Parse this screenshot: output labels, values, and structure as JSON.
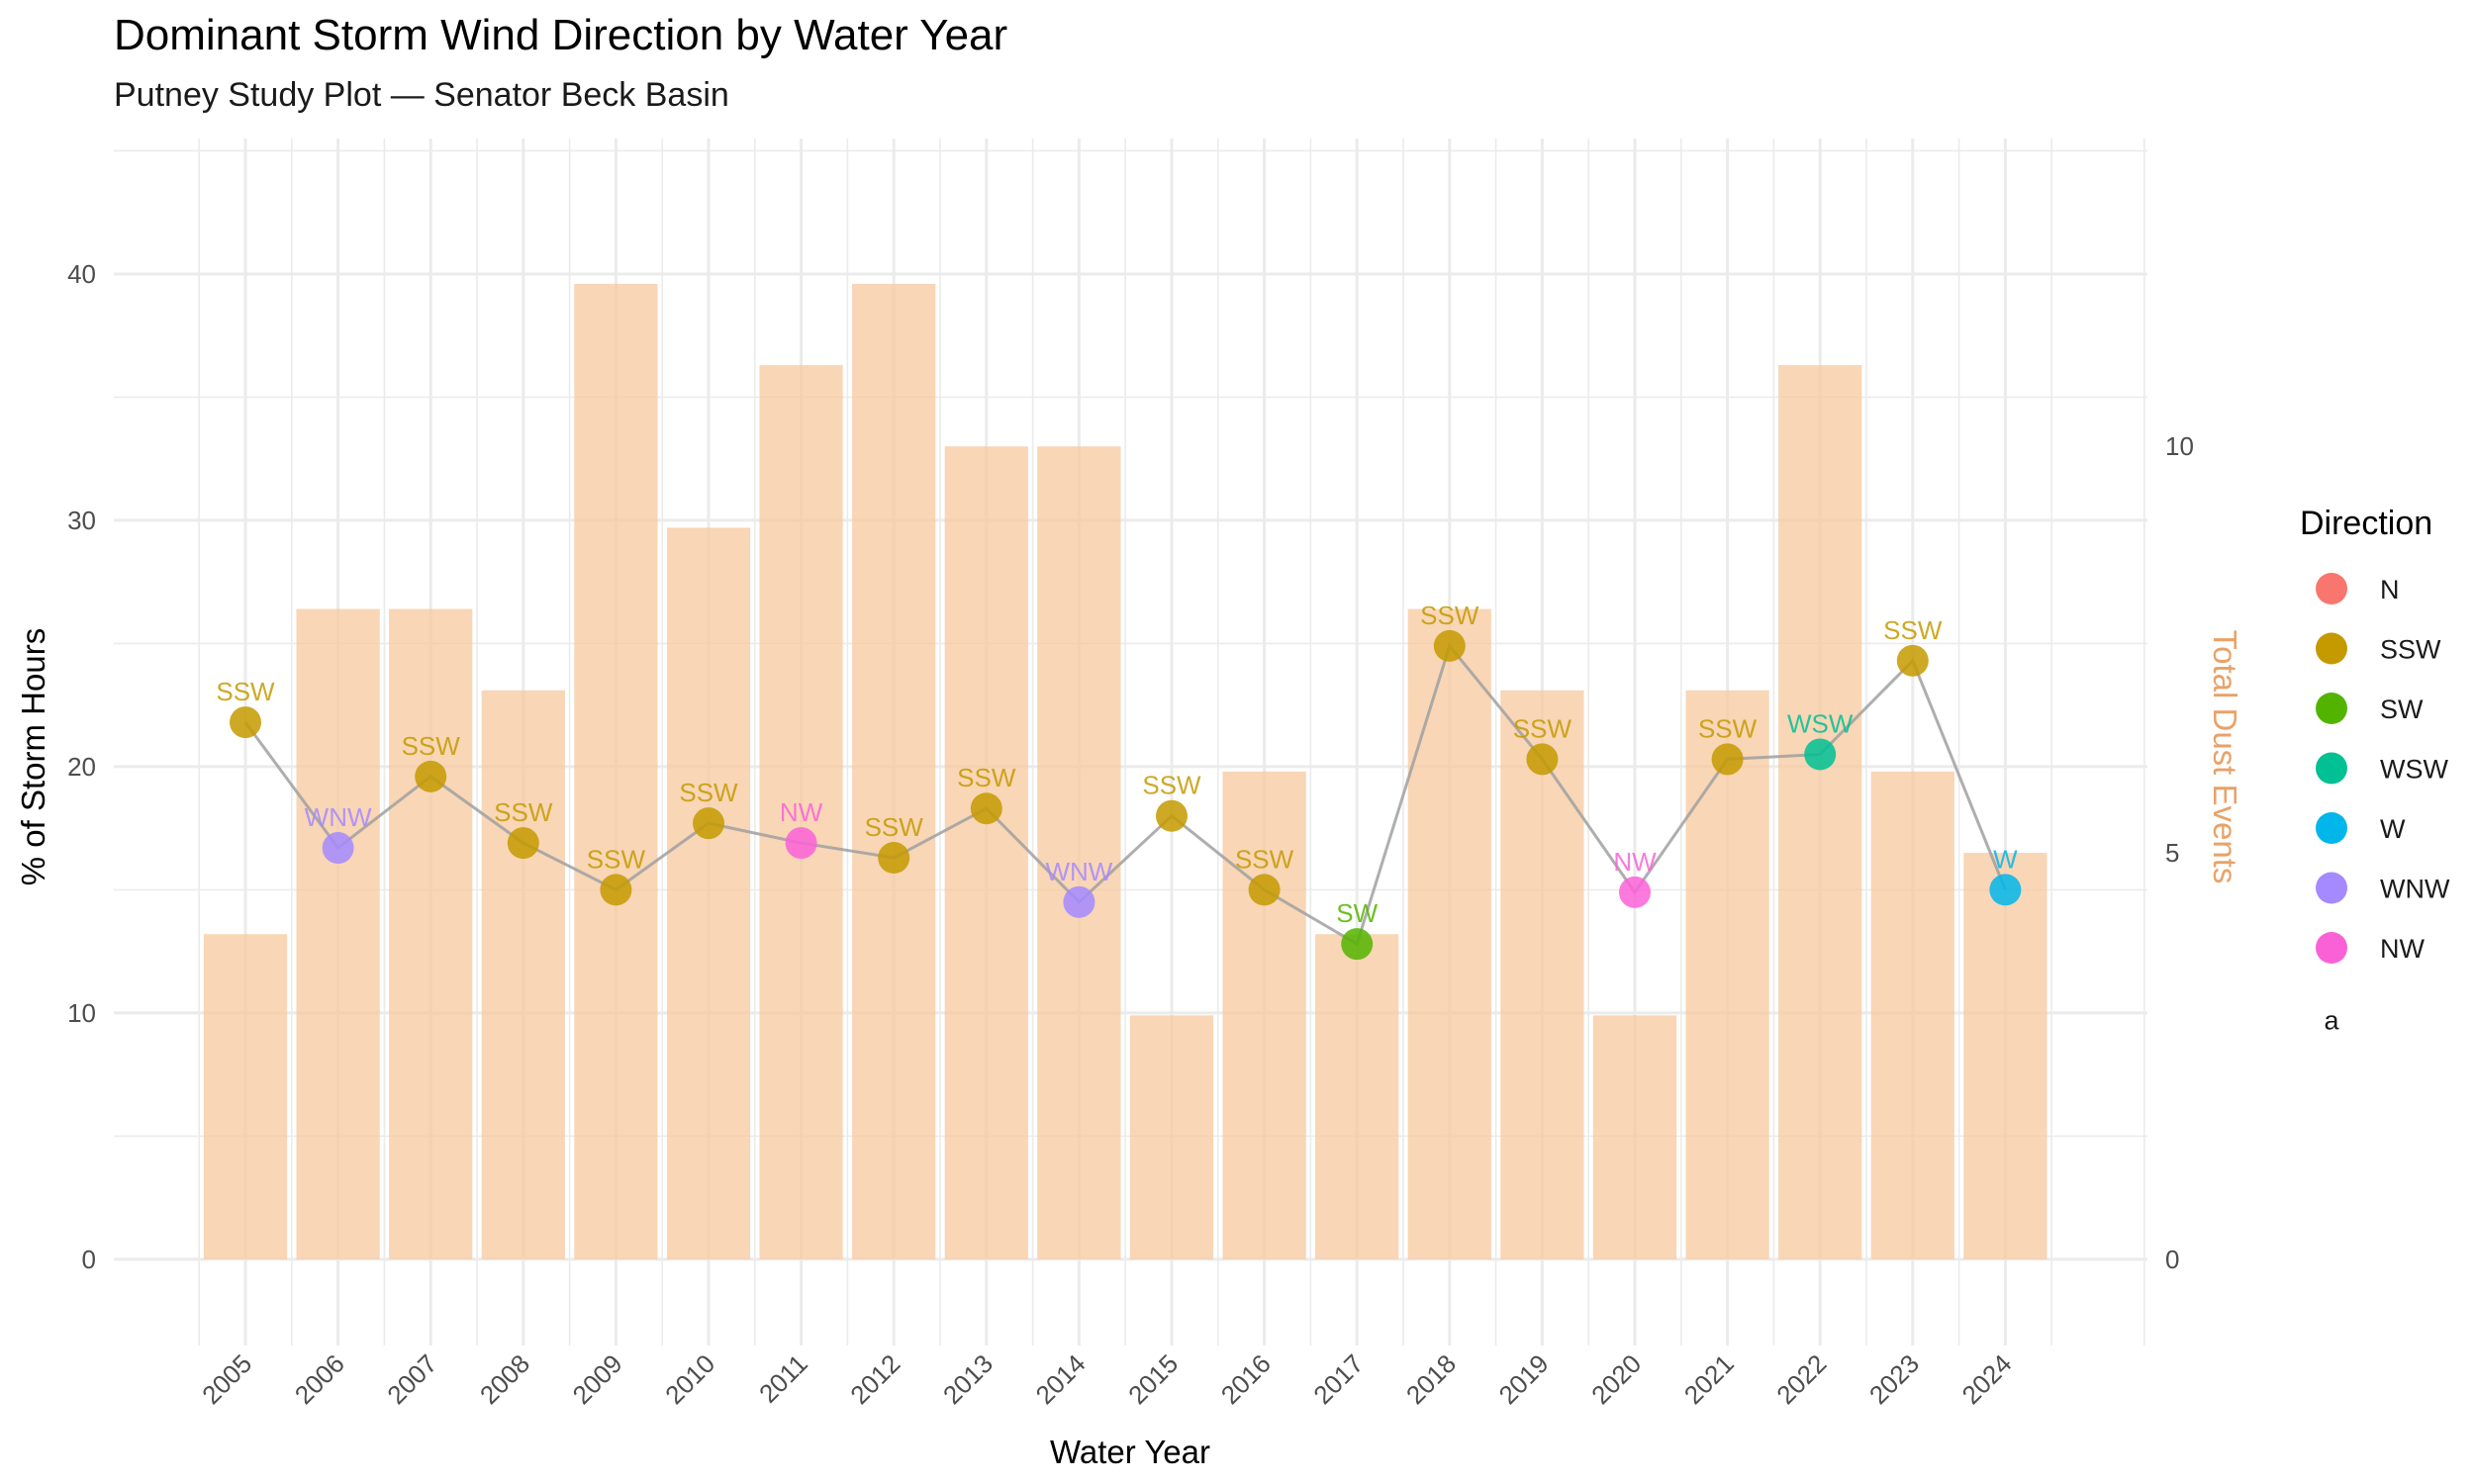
{
  "chart_data": {
    "type": "bar+line",
    "title": "Dominant Storm Wind Direction by Water Year",
    "subtitle": "Putney Study Plot — Senator Beck Basin",
    "xlabel": "Water Year",
    "ylabel": "% of Storm Hours",
    "y2label": "Total Dust Events",
    "ylim": [
      -3.5,
      45.5
    ],
    "yticks": [
      0,
      10,
      20,
      30,
      40
    ],
    "y2_scale": 3.3,
    "y2ticks": [
      0,
      5,
      10
    ],
    "categories": [
      "2005",
      "2006",
      "2007",
      "2008",
      "2009",
      "2010",
      "2011",
      "2012",
      "2013",
      "2014",
      "2015",
      "2016",
      "2017",
      "2018",
      "2019",
      "2020",
      "2021",
      "2022",
      "2023",
      "2024"
    ],
    "bar_series": {
      "name": "Total Dust Events",
      "values": [
        4,
        8,
        8,
        7,
        12,
        9,
        11,
        12,
        10,
        10,
        3,
        6,
        4,
        8,
        7,
        3,
        7,
        11,
        6,
        5
      ]
    },
    "line_series": {
      "name": "% of Storm Hours",
      "values": [
        21.8,
        16.7,
        19.6,
        16.9,
        15.0,
        17.7,
        16.9,
        16.3,
        18.3,
        14.5,
        18.0,
        15.0,
        12.8,
        24.9,
        20.3,
        14.9,
        20.3,
        20.5,
        24.3,
        15.0
      ],
      "directions": [
        "SSW",
        "WNW",
        "SSW",
        "SSW",
        "SSW",
        "SSW",
        "NW",
        "SSW",
        "SSW",
        "WNW",
        "SSW",
        "SSW",
        "SW",
        "SSW",
        "SSW",
        "NW",
        "SSW",
        "WSW",
        "SSW",
        "W"
      ]
    },
    "legend": {
      "title": "Direction",
      "position": "right",
      "entries": [
        {
          "label": "N",
          "color": "#F8766D"
        },
        {
          "label": "SSW",
          "color": "#C49A00"
        },
        {
          "label": "SW",
          "color": "#53B400"
        },
        {
          "label": "WSW",
          "color": "#00C094"
        },
        {
          "label": "W",
          "color": "#00B6EB"
        },
        {
          "label": "WNW",
          "color": "#A58AFF"
        },
        {
          "label": "NW",
          "color": "#FB61D7"
        }
      ],
      "extra_glyph": "a"
    },
    "colors": {
      "bar": "#F5C89E",
      "line": "#A0A0A0",
      "grid": "#EBEBEB",
      "y2_axis_title": "#E8A268"
    }
  }
}
